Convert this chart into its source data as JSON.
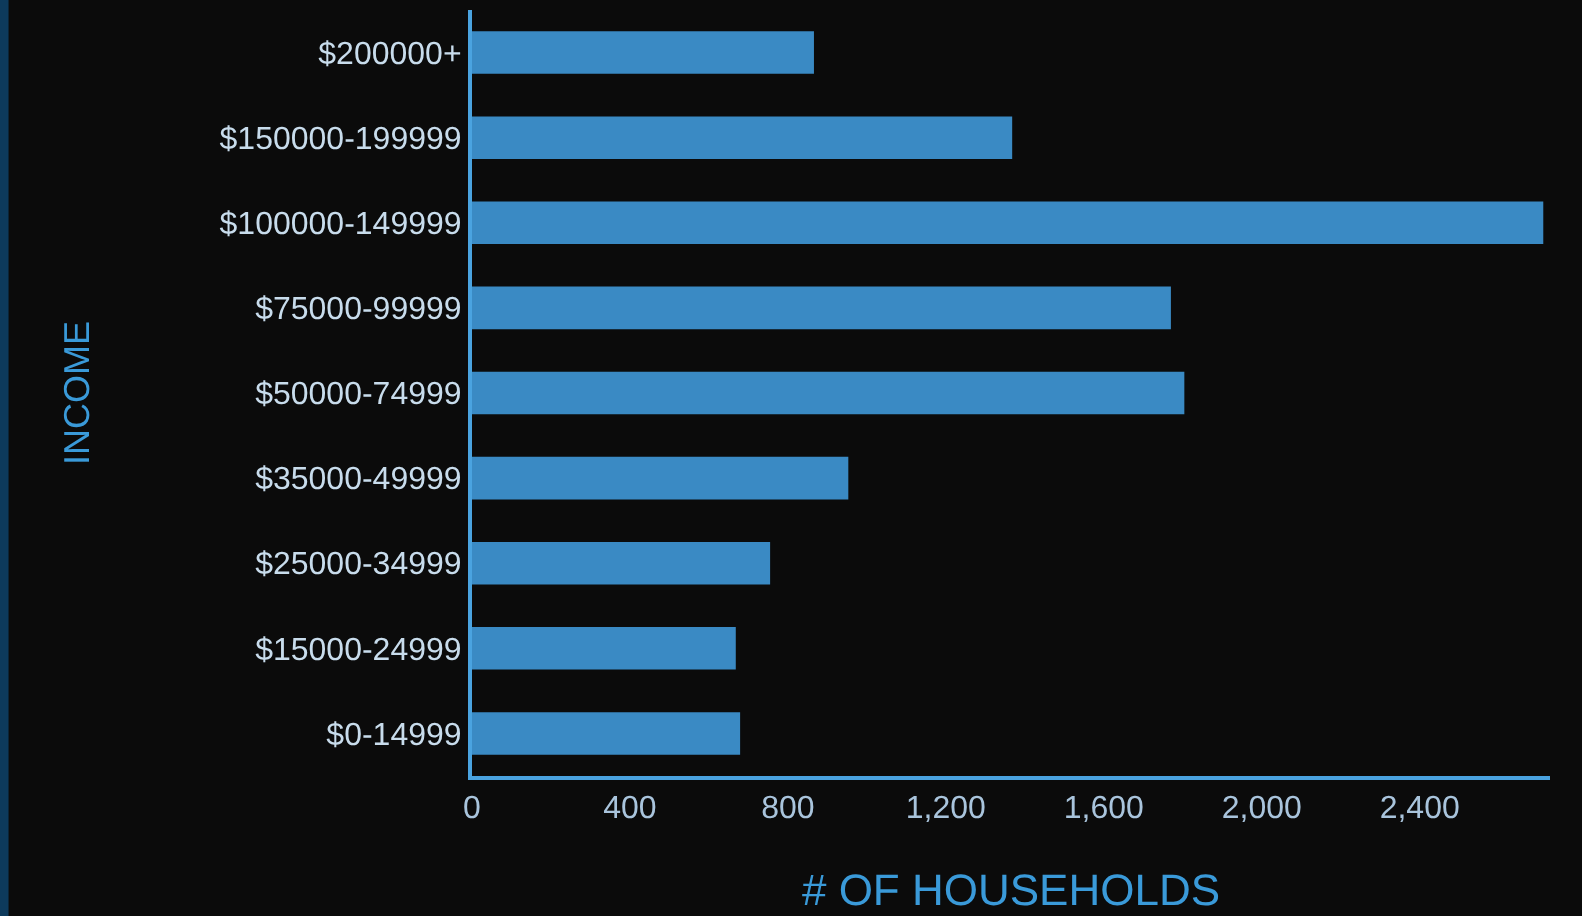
{
  "chart_data": {
    "type": "bar",
    "orientation": "horizontal",
    "xlabel": "# OF HOUSEHOLDS",
    "ylabel": "INCOME",
    "categories": [
      "$200000+",
      "$150000-199999",
      "$100000-149999",
      "$75000-99999",
      "$50000-74999",
      "$35000-49999",
      "$25000-34999",
      "$15000-24999",
      "$0-14999"
    ],
    "values": [
      866,
      1368,
      2713,
      1770,
      1804,
      953,
      755,
      668,
      679
    ],
    "color": "#3a8ac4",
    "xlim": [
      0,
      2730
    ],
    "xticks": [
      0,
      400,
      800,
      {
        "value": 1200,
        "label": "1,200"
      },
      {
        "value": 1600,
        "label": "1,600"
      },
      {
        "value": 2000,
        "label": "2,000"
      },
      {
        "value": 2400,
        "label": "2,400"
      }
    ],
    "grid": false
  }
}
